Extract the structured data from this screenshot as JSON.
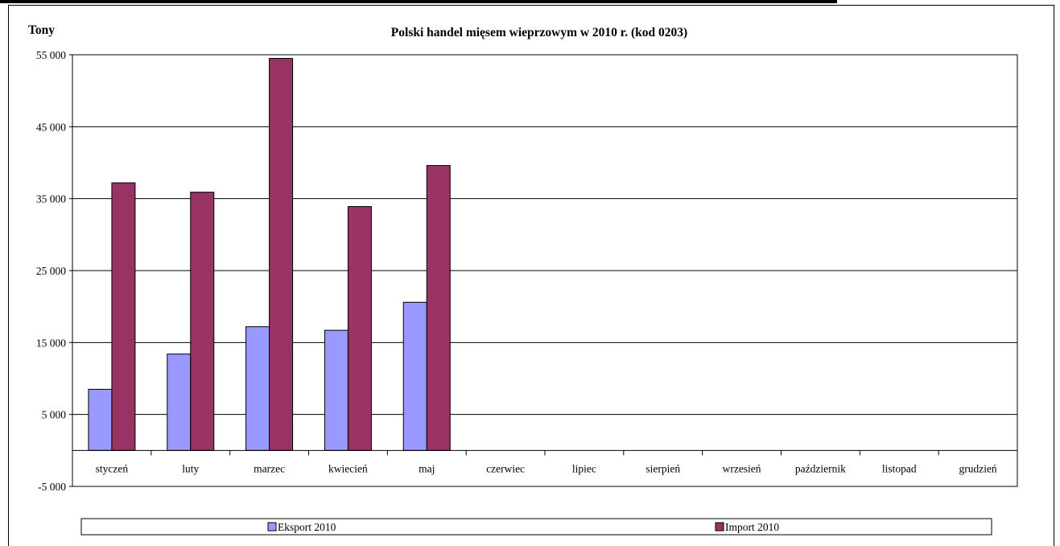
{
  "chart_data": {
    "type": "bar",
    "title": "Polski handel mięsem wieprzowym w 2010 r. (kod 0203)",
    "ylabel": "Tony",
    "xlabel": "",
    "categories": [
      "styczeń",
      "luty",
      "marzec",
      "kwiecień",
      "maj",
      "czerwiec",
      "lipiec",
      "sierpień",
      "wrzesień",
      "październik",
      "listopad",
      "grudzień"
    ],
    "series": [
      {
        "name": "Eksport 2010",
        "color": "#9999ff",
        "values": [
          8500,
          13400,
          17200,
          16700,
          20600,
          null,
          null,
          null,
          null,
          null,
          null,
          null
        ]
      },
      {
        "name": "Import 2010",
        "color": "#993366",
        "values": [
          37200,
          35900,
          54500,
          33900,
          39600,
          null,
          null,
          null,
          null,
          null,
          null,
          null
        ]
      }
    ],
    "ylim": [
      -5000,
      55000
    ],
    "yticks": [
      -5000,
      5000,
      15000,
      25000,
      35000,
      45000,
      55000
    ],
    "ytick_labels": [
      "-5 000",
      "5 000",
      "15 000",
      "25 000",
      "35 000",
      "45 000",
      "55 000"
    ],
    "grid": true,
    "legend_position": "bottom"
  }
}
